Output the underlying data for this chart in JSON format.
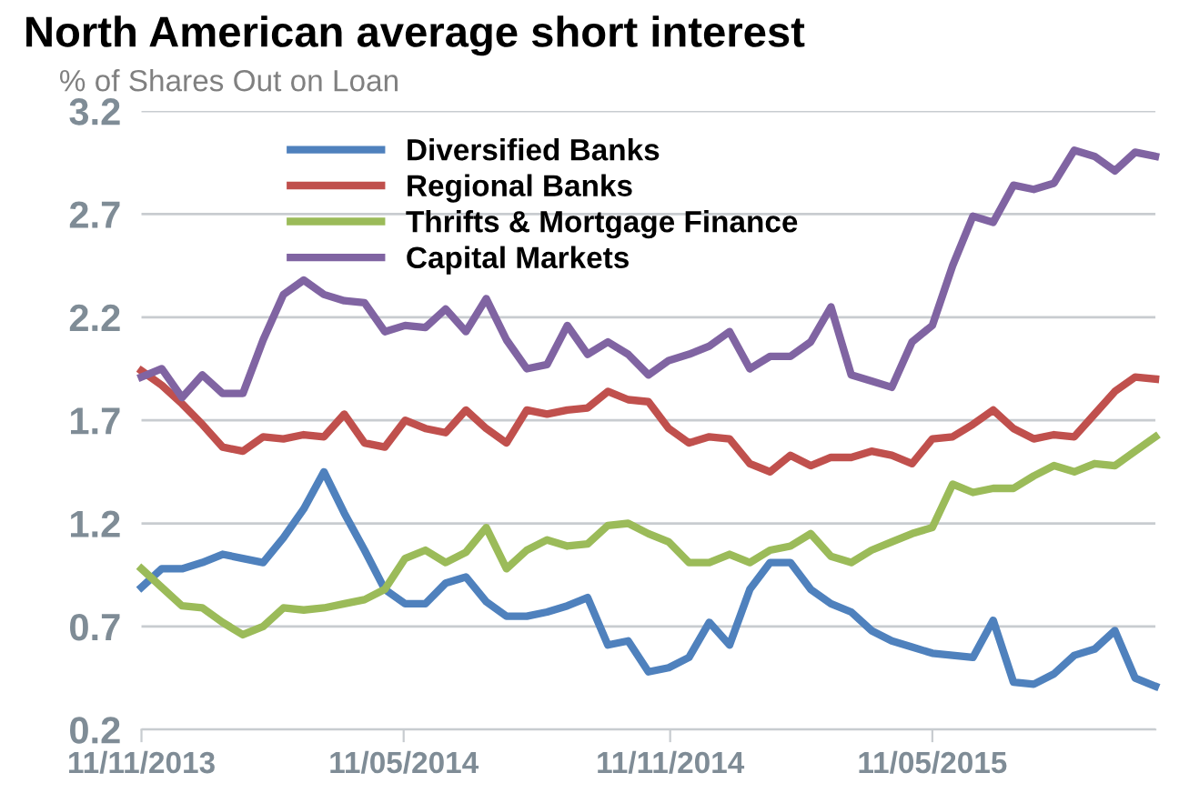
{
  "chart_data": {
    "type": "line",
    "title": "North American average short interest",
    "subtitle": "% of Shares Out on Loan",
    "x": [
      "2013-11-11",
      "2013-11-25",
      "2013-12-09",
      "2013-12-23",
      "2014-01-06",
      "2014-01-20",
      "2014-02-03",
      "2014-02-17",
      "2014-03-03",
      "2014-03-17",
      "2014-03-31",
      "2014-04-14",
      "2014-04-28",
      "2014-05-12",
      "2014-05-26",
      "2014-06-09",
      "2014-06-23",
      "2014-07-07",
      "2014-07-21",
      "2014-08-04",
      "2014-08-18",
      "2014-09-01",
      "2014-09-15",
      "2014-09-29",
      "2014-10-13",
      "2014-10-27",
      "2014-11-10",
      "2014-11-24",
      "2014-12-08",
      "2014-12-22",
      "2015-01-05",
      "2015-01-19",
      "2015-02-02",
      "2015-02-16",
      "2015-03-02",
      "2015-03-16",
      "2015-03-30",
      "2015-04-13",
      "2015-04-27",
      "2015-05-11",
      "2015-05-25",
      "2015-06-08",
      "2015-06-22",
      "2015-07-06",
      "2015-07-20",
      "2015-08-03",
      "2015-08-17",
      "2015-08-31",
      "2015-09-14",
      "2015-09-28",
      "2015-10-12"
    ],
    "series": [
      {
        "name": "Diversified Banks",
        "color": "#4f81bd",
        "values": [
          0.89,
          0.98,
          0.98,
          1.01,
          1.05,
          1.03,
          1.01,
          1.13,
          1.27,
          1.45,
          1.25,
          1.07,
          0.88,
          0.81,
          0.81,
          0.91,
          0.94,
          0.82,
          0.75,
          0.75,
          0.77,
          0.8,
          0.84,
          0.61,
          0.63,
          0.48,
          0.5,
          0.55,
          0.72,
          0.61,
          0.88,
          1.01,
          1.01,
          0.88,
          0.81,
          0.77,
          0.68,
          0.63,
          0.6,
          0.57,
          0.56,
          0.55,
          0.73,
          0.43,
          0.42,
          0.47,
          0.56,
          0.59,
          0.68,
          0.45,
          0.41
        ]
      },
      {
        "name": "Regional Banks",
        "color": "#c0504d",
        "values": [
          1.94,
          1.87,
          1.78,
          1.68,
          1.57,
          1.55,
          1.62,
          1.61,
          1.63,
          1.62,
          1.73,
          1.59,
          1.57,
          1.7,
          1.66,
          1.64,
          1.75,
          1.66,
          1.59,
          1.75,
          1.73,
          1.75,
          1.76,
          1.84,
          1.8,
          1.79,
          1.66,
          1.59,
          1.62,
          1.61,
          1.49,
          1.45,
          1.53,
          1.48,
          1.52,
          1.52,
          1.55,
          1.53,
          1.49,
          1.61,
          1.62,
          1.68,
          1.75,
          1.66,
          1.61,
          1.63,
          1.62,
          1.73,
          1.84,
          1.91,
          1.9
        ]
      },
      {
        "name": "Thrifts & Mortgage Finance",
        "color": "#9bbb59",
        "values": [
          0.98,
          0.89,
          0.8,
          0.79,
          0.72,
          0.66,
          0.7,
          0.79,
          0.78,
          0.79,
          0.81,
          0.83,
          0.88,
          1.03,
          1.07,
          1.01,
          1.06,
          1.18,
          0.98,
          1.07,
          1.12,
          1.09,
          1.1,
          1.19,
          1.2,
          1.15,
          1.11,
          1.01,
          1.01,
          1.05,
          1.01,
          1.07,
          1.09,
          1.15,
          1.04,
          1.01,
          1.07,
          1.11,
          1.15,
          1.18,
          1.39,
          1.35,
          1.37,
          1.37,
          1.43,
          1.48,
          1.45,
          1.49,
          1.48,
          1.55,
          1.62
        ]
      },
      {
        "name": "Capital Markets",
        "color": "#8064a2",
        "values": [
          1.91,
          1.95,
          1.81,
          1.92,
          1.83,
          1.83,
          2.09,
          2.31,
          2.38,
          2.31,
          2.28,
          2.27,
          2.13,
          2.16,
          2.15,
          2.24,
          2.13,
          2.29,
          2.09,
          1.95,
          1.97,
          2.16,
          2.02,
          2.08,
          2.02,
          1.92,
          1.99,
          2.02,
          2.06,
          2.13,
          1.95,
          2.01,
          2.01,
          2.08,
          2.25,
          1.92,
          1.89,
          1.86,
          2.08,
          2.16,
          2.45,
          2.69,
          2.66,
          2.84,
          2.82,
          2.85,
          3.01,
          2.98,
          2.91,
          3.0,
          2.98
        ]
      }
    ],
    "xlim": [
      "2013-11-11",
      "2015-10-12"
    ],
    "xticks": [
      {
        "value": "2013-11-11",
        "label": "11/11/2013"
      },
      {
        "value": "2014-05-11",
        "label": "11/05/2014"
      },
      {
        "value": "2014-11-11",
        "label": "11/11/2014"
      },
      {
        "value": "2015-05-11",
        "label": "11/05/2015"
      }
    ],
    "ylim": [
      0.2,
      3.2
    ],
    "yticks": [
      0.2,
      0.7,
      1.2,
      1.7,
      2.2,
      2.7,
      3.2
    ],
    "grid": "y",
    "legend": "top left",
    "marker": "none",
    "line_style": "solid"
  }
}
